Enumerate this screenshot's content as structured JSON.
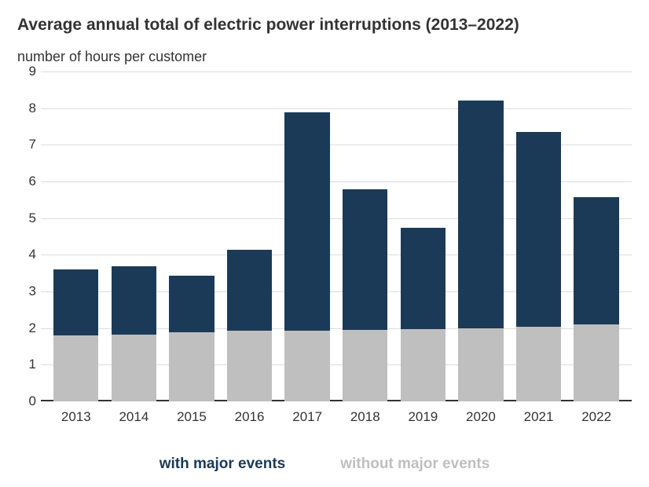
{
  "title": "Average annual total of electric power interruptions (2013–2022)",
  "subtitle": "number of hours per customer",
  "chart": {
    "type": "stacked-bar",
    "ylim": [
      0,
      9
    ],
    "ytick_step": 1,
    "yticks": [
      0,
      1,
      2,
      3,
      4,
      5,
      6,
      7,
      8,
      9
    ],
    "grid_color": "#dddddd",
    "baseline_color": "#333333",
    "background_color": "#ffffff",
    "categories": [
      "2013",
      "2014",
      "2015",
      "2016",
      "2017",
      "2018",
      "2019",
      "2020",
      "2021",
      "2022"
    ],
    "series": [
      {
        "name": "without major events",
        "color": "#bfbfbf",
        "values": [
          1.8,
          1.82,
          1.88,
          1.92,
          1.92,
          1.96,
          1.98,
          2.0,
          2.04,
          2.1
        ]
      },
      {
        "name": "with major events",
        "color": "#1b3a57",
        "values": [
          1.8,
          1.86,
          1.54,
          2.22,
          5.96,
          3.82,
          2.76,
          6.2,
          5.3,
          3.48
        ]
      }
    ],
    "bar_width_ratio": 0.78,
    "label_fontsize": 17,
    "title_fontsize": 21,
    "subtitle_fontsize": 18,
    "legend_fontsize": 19
  },
  "legend": {
    "items": [
      {
        "label": "with major events",
        "color": "#1b3a57"
      },
      {
        "label": "without major events",
        "color": "#bfbfbf"
      }
    ]
  }
}
